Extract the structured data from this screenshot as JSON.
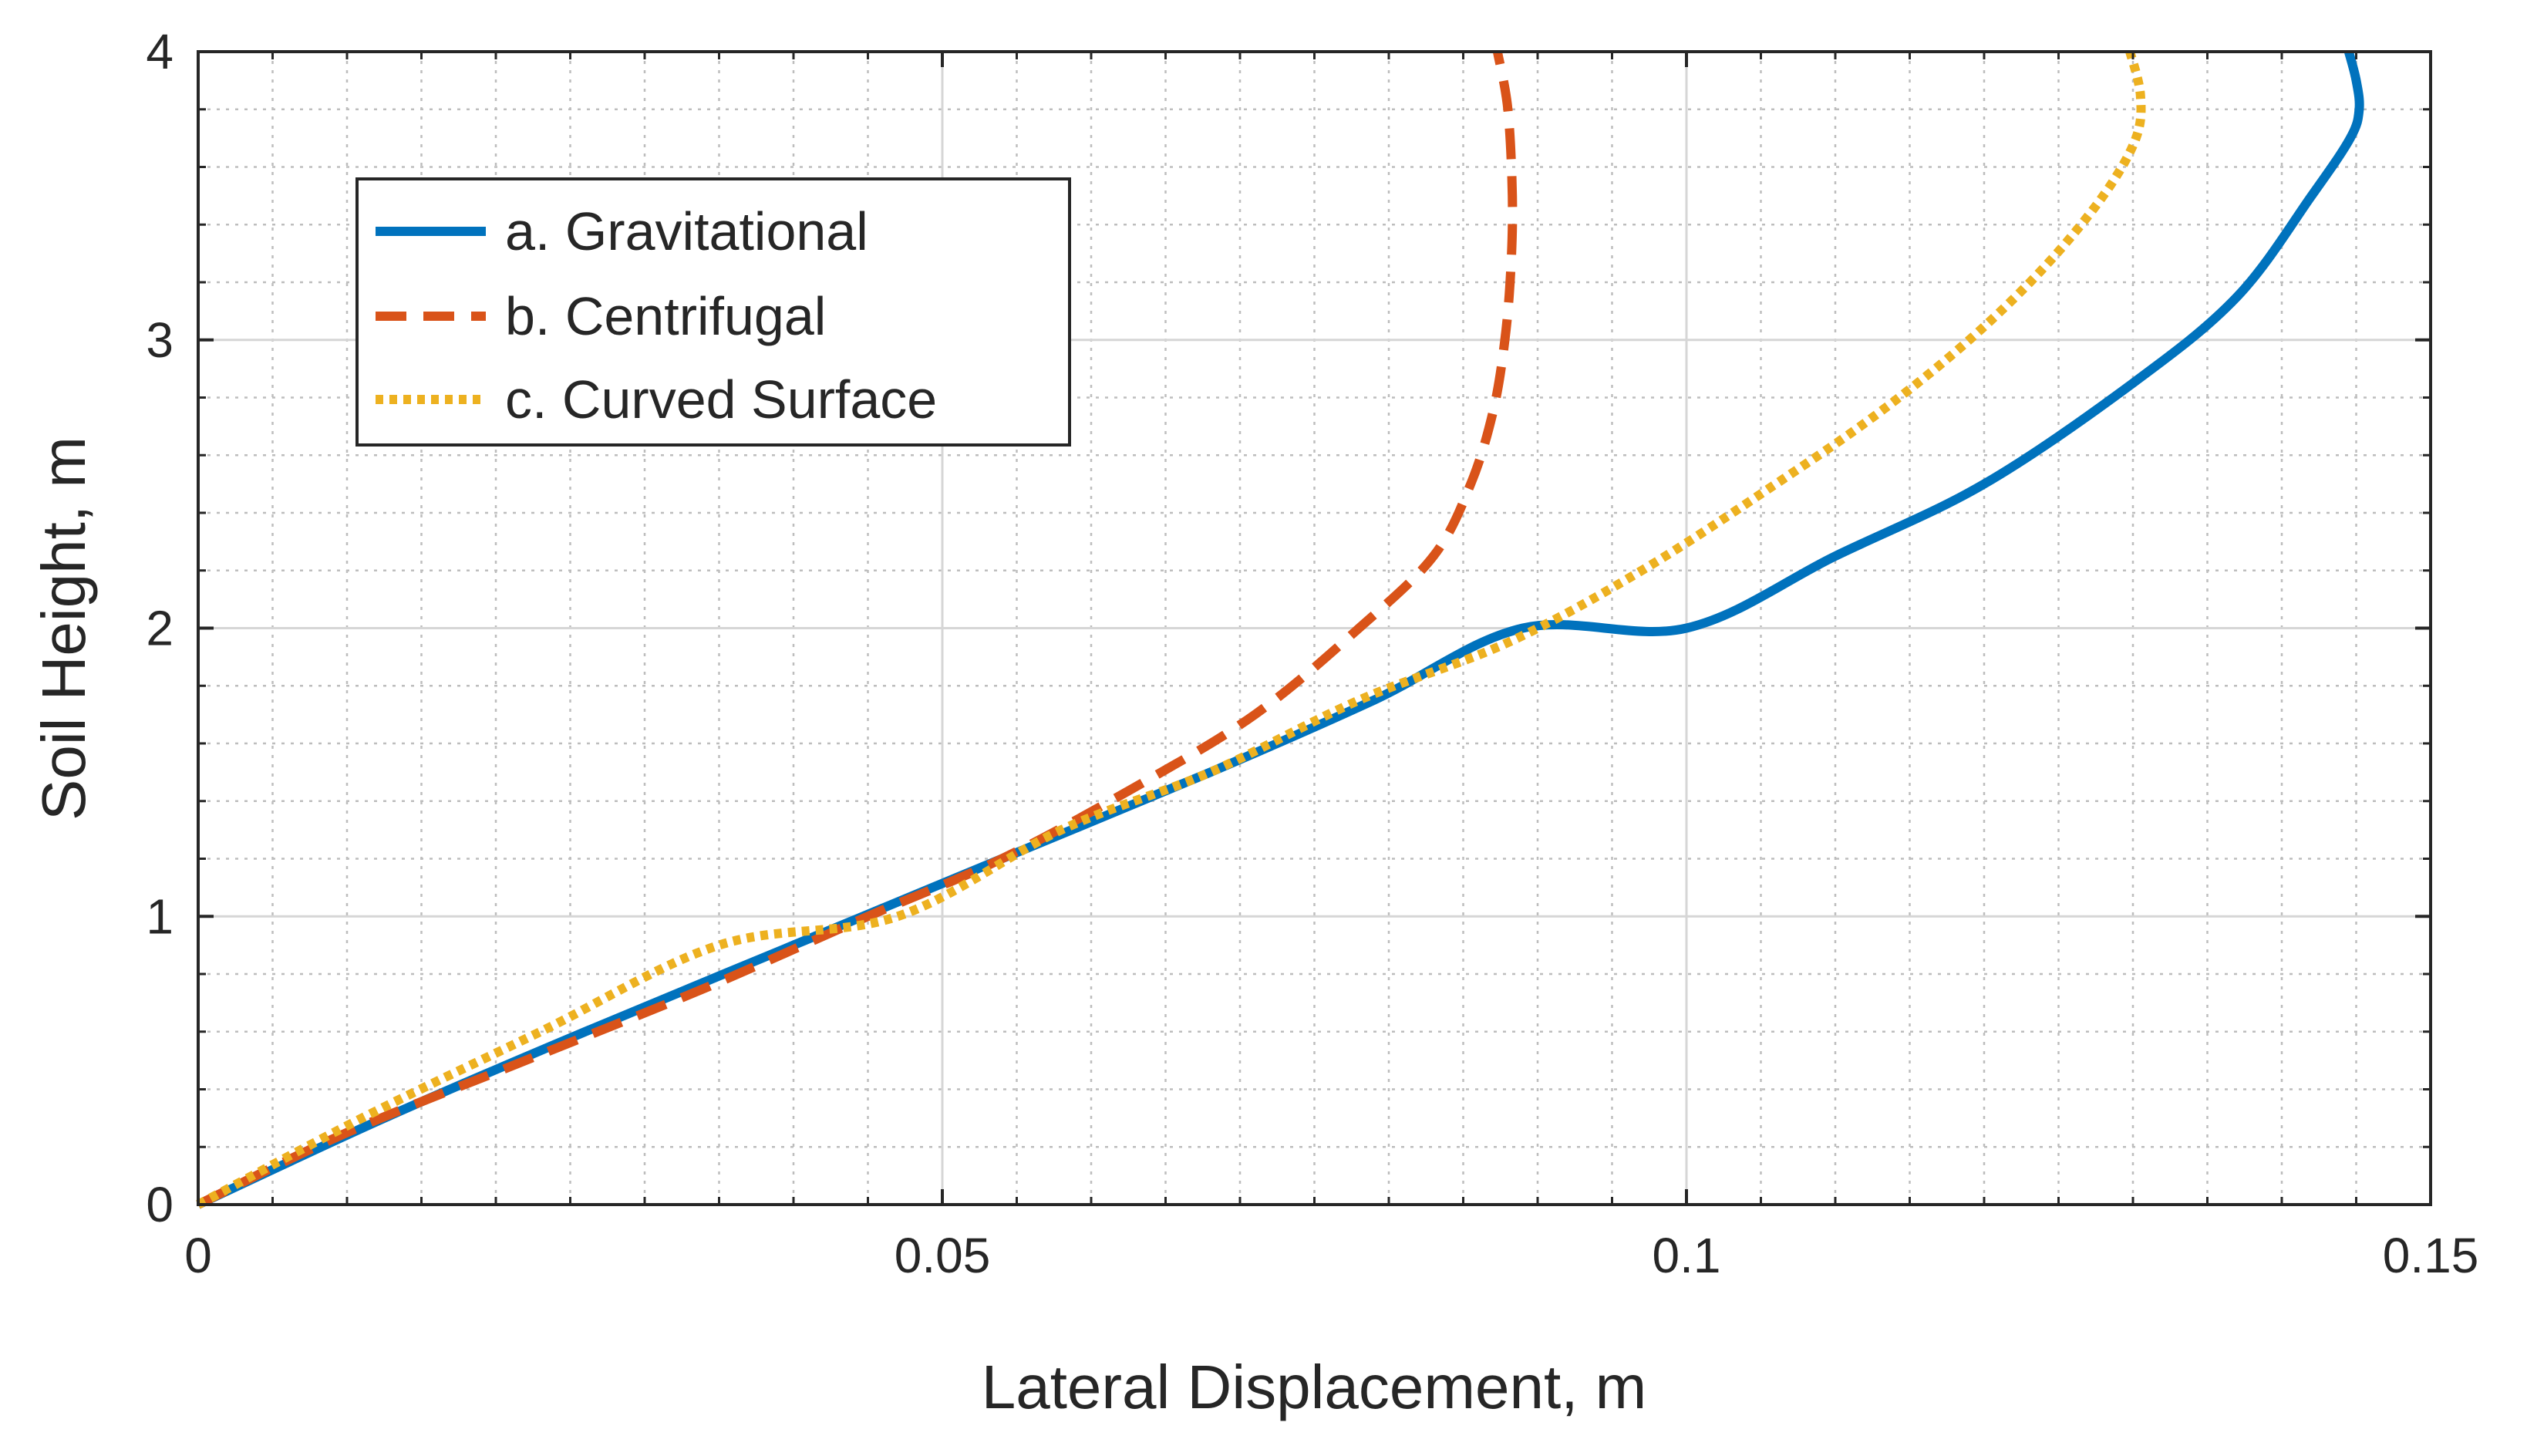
{
  "chart_data": {
    "type": "line",
    "title": "",
    "xlabel": "Lateral Displacement, m",
    "ylabel": "Soil Height, m",
    "xlim": [
      0,
      0.15
    ],
    "ylim": [
      0,
      4
    ],
    "xticks": [
      0,
      0.05,
      0.1,
      0.15
    ],
    "xtick_labels": [
      "0",
      "0.05",
      "0.1",
      "0.15"
    ],
    "yticks": [
      0,
      1,
      2,
      3,
      4
    ],
    "ytick_labels": [
      "0",
      "1",
      "2",
      "3",
      "4"
    ],
    "grid": true,
    "minor_grid": true,
    "legend_position": "upper-left",
    "series": [
      {
        "name": "a. Gravitational",
        "color": "#0072BD",
        "style": "solid",
        "x": [
          0,
          0.0125,
          0.026,
          0.04,
          0.054,
          0.068,
          0.079,
          0.089,
          0.1,
          0.11,
          0.12,
          0.13,
          0.137,
          0.142,
          0.1446,
          0.1452,
          0.145,
          0.1445
        ],
        "y": [
          0,
          0.3,
          0.6,
          0.9,
          1.2,
          1.5,
          1.75,
          2.0,
          2.0,
          2.25,
          2.5,
          2.85,
          3.15,
          3.5,
          3.7,
          3.8,
          3.9,
          4.0
        ]
      },
      {
        "name": "b. Centrifugal",
        "color": "#D95319",
        "style": "dashed",
        "x": [
          0,
          0.01,
          0.022,
          0.034,
          0.045,
          0.054,
          0.063,
          0.071,
          0.078,
          0.083,
          0.0855,
          0.087,
          0.0878,
          0.0882,
          0.0883,
          0.088,
          0.0873
        ],
        "y": [
          0,
          0.25,
          0.5,
          0.75,
          1.0,
          1.2,
          1.45,
          1.7,
          2.0,
          2.25,
          2.5,
          2.75,
          3.0,
          3.25,
          3.5,
          3.8,
          4.0
        ]
      },
      {
        "name": "c. Curved Surface",
        "color": "#EDB120",
        "style": "dotted",
        "x": [
          0,
          0.011,
          0.023,
          0.035,
          0.047,
          0.058,
          0.068,
          0.078,
          0.088,
          0.097,
          0.106,
          0.113,
          0.119,
          0.124,
          0.128,
          0.1302,
          0.1305,
          0.1298
        ],
        "y": [
          0,
          0.3,
          0.6,
          0.9,
          1.0,
          1.3,
          1.5,
          1.75,
          1.95,
          2.2,
          2.5,
          2.75,
          3.0,
          3.25,
          3.5,
          3.7,
          3.85,
          4.0
        ]
      }
    ]
  }
}
